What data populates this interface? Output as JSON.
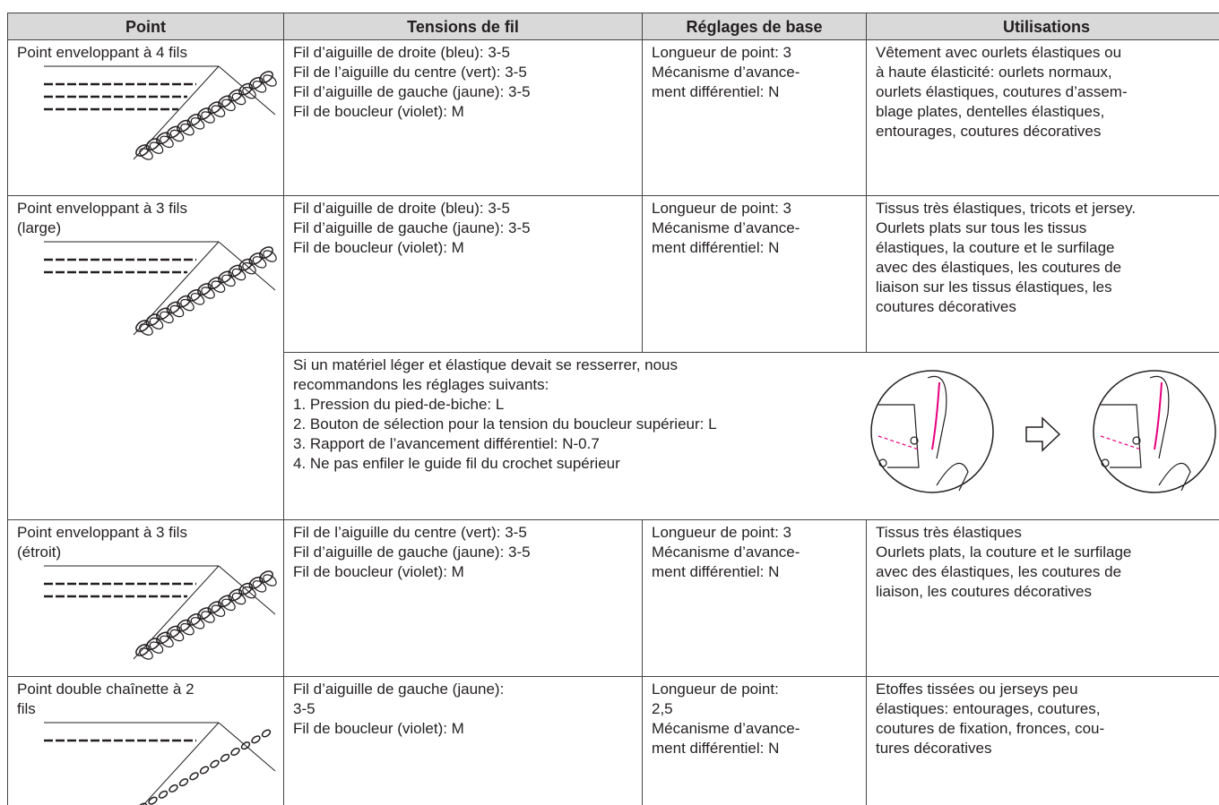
{
  "table": {
    "columns": [
      "Point",
      "Tensions de fil",
      "Réglages de base",
      "Utilisations"
    ],
    "rows": [
      {
        "point": [
          "Point enveloppant à 4 fils"
        ],
        "tensions": [
          "Fil d’aiguille de droite (bleu): 3-5",
          "Fil de l’aiguille du centre (vert): 3-5",
          "Fil d’aiguille de gauche (jaune): 3-5",
          "Fil de boucleur (violet): M"
        ],
        "settings": [
          "Longueur de point: 3",
          "Mécanisme d’avance-",
          "ment différentiel: N"
        ],
        "uses": [
          "Vêtement avec ourlets élastiques ou",
          "à haute élasticité: ourlets normaux,",
          "ourlets élastiques, coutures d’assem-",
          "blage plates, dentelles élastiques,",
          "entourages, coutures décoratives"
        ]
      },
      {
        "point": [
          "Point enveloppant à 3 fils",
          "(large)"
        ],
        "tensions": [
          "Fil d’aiguille de droite (bleu): 3-5",
          "Fil d’aiguille de gauche (jaune): 3-5",
          "Fil de boucleur (violet): M"
        ],
        "settings": [
          "Longueur de point: 3",
          "Mécanisme d’avance-",
          "ment différentiel: N"
        ],
        "uses": [
          "Tissus très élastiques, tricots et jersey.",
          "Ourlets plats sur tous les tissus",
          "élastiques, la couture et le surfilage",
          "avec des élastiques, les coutures de",
          "liaison sur les tissus élastiques, les",
          "coutures décoratives"
        ]
      },
      {
        "point": [
          "Point enveloppant à 3 fils",
          "(étroit)"
        ],
        "tensions": [
          "Fil de l’aiguille du centre (vert): 3-5",
          "Fil d’aiguille de gauche (jaune): 3-5",
          "Fil de boucleur (violet): M"
        ],
        "settings": [
          "Longueur de point: 3",
          "Mécanisme d’avance-",
          "ment différentiel: N"
        ],
        "uses": [
          "Tissus très élastiques",
          "Ourlets plats, la couture et le surfilage",
          "avec des élastiques, les coutures de",
          "liaison, les coutures décoratives"
        ]
      },
      {
        "point": [
          "Point double chaînette à 2",
          "fils"
        ],
        "tensions": [
          "Fil d’aiguille de gauche (jaune):",
          "3-5",
          "Fil de boucleur (violet): M"
        ],
        "settings": [
          "Longueur de point:",
          "2,5",
          "Mécanisme d’avance-",
          "ment différentiel: N"
        ],
        "uses": [
          "Etoffes tissées ou jerseys peu",
          "élastiques: entourages, coutures,",
          "coutures de fixation, fronces, cou-",
          "tures décoratives"
        ]
      }
    ],
    "note": [
      "Si un matériel léger et élastique devait se resserrer, nous",
      "recommandons les réglages suivants:",
      "1. Pression du pied-de-biche: L",
      "2. Bouton de sélection pour la tension du boucleur supérieur: L",
      "3. Rapport de l’avancement différentiel: N-0.7",
      "4. Ne pas enfiler le guide fil du crochet supérieur"
    ]
  }
}
